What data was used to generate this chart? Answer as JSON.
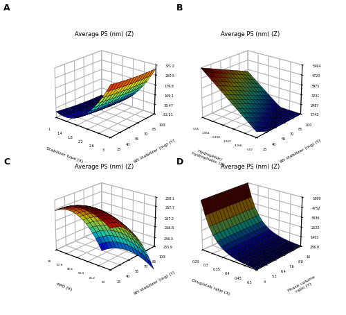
{
  "title": "Average PS (nm) (Z)",
  "panel_labels": [
    "A",
    "B",
    "C",
    "D"
  ],
  "plotA": {
    "xlabel": "Stabilizer type (X)",
    "ylabel": "Wt stabilizer (mg) (Y)",
    "x_ticks": [
      1,
      1.4,
      1.8,
      2.2,
      2.6,
      3
    ],
    "y_ticks": [
      25,
      40,
      55,
      70,
      85,
      100
    ],
    "z_ticks": [
      -32.21,
      38.47,
      109.1,
      179.8,
      250.5,
      321.2
    ],
    "x_range": [
      1,
      3
    ],
    "y_range": [
      25,
      100
    ],
    "elev": 22,
    "azim": -50
  },
  "plotB": {
    "xlabel": "Hydrophilic/\nhydrophobic (X)",
    "ylabel": "Wt stabilizer (mg) (Y)",
    "x_ticks": [
      0.55,
      1.454,
      2.358,
      3.262,
      4.166,
      5.07
    ],
    "y_ticks": [
      25,
      40,
      55,
      70,
      85,
      100
    ],
    "z_ticks": [
      1743,
      2487,
      3231,
      3975,
      4720,
      5464
    ],
    "x_range": [
      0.55,
      5.07
    ],
    "y_range": [
      25,
      100
    ],
    "elev": 22,
    "azim": -50
  },
  "plotC": {
    "xlabel": "PPO (X)",
    "ylabel": "Wt stabilizer (mg) (Y)",
    "x_ticks": [
      30,
      37.8,
      45.6,
      53.4,
      61.2,
      69
    ],
    "y_ticks": [
      25,
      40,
      55,
      70,
      85,
      100
    ],
    "z_ticks": [
      255.9,
      256.3,
      256.8,
      257.2,
      257.7,
      258.1
    ],
    "x_range": [
      30,
      69
    ],
    "y_range": [
      25,
      100
    ],
    "elev": 22,
    "azim": -50
  },
  "plotD": {
    "xlabel": "Drug/stab ratio (X)",
    "ylabel": "Phase volume\nratio (Y)",
    "x_ticks": [
      0.25,
      0.3,
      0.35,
      0.4,
      0.45,
      0.5
    ],
    "y_ticks": [
      4,
      5.2,
      6.4,
      7.6,
      8.8,
      10
    ],
    "z_ticks": [
      286.9,
      1403,
      2520,
      3636,
      4752,
      5869
    ],
    "x_range": [
      0.25,
      0.5
    ],
    "y_range": [
      4,
      10
    ],
    "elev": 22,
    "azim": -50
  },
  "colormap": "jet"
}
